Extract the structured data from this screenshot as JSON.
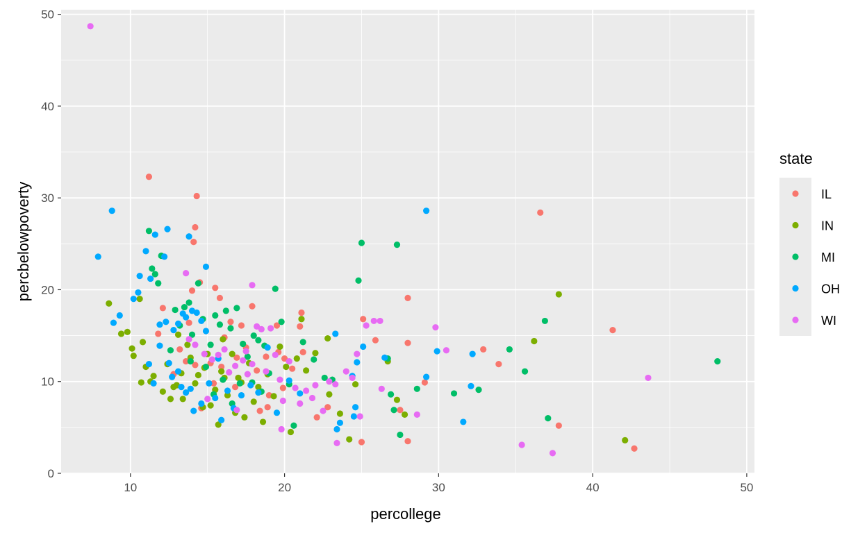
{
  "chart_data": {
    "type": "scatter",
    "title": "",
    "xlabel": "percollege",
    "ylabel": "percbelowpoverty",
    "xlim": [
      5.5,
      50.5
    ],
    "ylim": [
      0,
      50.5
    ],
    "x_ticks": [
      10,
      20,
      30,
      40,
      50
    ],
    "y_ticks": [
      0,
      10,
      20,
      30,
      40,
      50
    ],
    "x_tick_labels": [
      "10",
      "20",
      "30",
      "40",
      "50"
    ],
    "y_tick_labels": [
      "0",
      "10",
      "20",
      "30",
      "40",
      "50"
    ],
    "grid": true,
    "legend": {
      "title": "state",
      "placement": "right"
    },
    "series": [
      {
        "name": "IL",
        "color": "#F8766D",
        "points": [
          [
            11.2,
            32.3
          ],
          [
            14.3,
            30.2
          ],
          [
            14.2,
            26.8
          ],
          [
            14.1,
            25.2
          ],
          [
            14.5,
            20.8
          ],
          [
            15.5,
            20.2
          ],
          [
            15.8,
            19.1
          ],
          [
            14.0,
            19.9
          ],
          [
            12.1,
            18.0
          ],
          [
            17.9,
            18.2
          ],
          [
            21.1,
            17.5
          ],
          [
            19.5,
            16.1
          ],
          [
            21.0,
            16.0
          ],
          [
            25.1,
            16.8
          ],
          [
            25.9,
            14.5
          ],
          [
            28.0,
            14.2
          ],
          [
            28.0,
            19.1
          ],
          [
            36.6,
            28.4
          ],
          [
            41.3,
            15.6
          ],
          [
            32.9,
            13.5
          ],
          [
            33.9,
            11.9
          ],
          [
            29.1,
            9.9
          ],
          [
            27.5,
            6.9
          ],
          [
            28.0,
            3.5
          ],
          [
            25.0,
            3.4
          ],
          [
            37.8,
            5.2
          ],
          [
            42.7,
            2.7
          ],
          [
            11.8,
            15.2
          ],
          [
            13.2,
            13.5
          ],
          [
            13.6,
            12.2
          ],
          [
            14.2,
            11.8
          ],
          [
            15.2,
            12.0
          ],
          [
            15.9,
            11.6
          ],
          [
            16.5,
            16.5
          ],
          [
            16.9,
            12.6
          ],
          [
            17.0,
            10.4
          ],
          [
            17.5,
            13.7
          ],
          [
            18.2,
            11.2
          ],
          [
            18.8,
            12.7
          ],
          [
            19.0,
            8.5
          ],
          [
            19.6,
            13.2
          ],
          [
            20.0,
            12.5
          ],
          [
            20.5,
            11.4
          ],
          [
            21.2,
            13.2
          ],
          [
            22.1,
            6.1
          ],
          [
            22.8,
            7.2
          ],
          [
            14.6,
            7.1
          ],
          [
            15.4,
            9.8
          ],
          [
            16.1,
            14.8
          ],
          [
            16.8,
            9.4
          ],
          [
            18.4,
            6.8
          ],
          [
            19.9,
            9.3
          ],
          [
            13.8,
            16.4
          ],
          [
            17.2,
            16.1
          ],
          [
            12.8,
            10.8
          ],
          [
            18.9,
            7.2
          ]
        ]
      },
      {
        "name": "IN",
        "color": "#7CAE00",
        "points": [
          [
            8.6,
            18.5
          ],
          [
            10.6,
            19.0
          ],
          [
            9.4,
            15.2
          ],
          [
            9.8,
            15.4
          ],
          [
            10.1,
            13.6
          ],
          [
            10.2,
            12.8
          ],
          [
            10.8,
            14.3
          ],
          [
            10.7,
            9.9
          ],
          [
            11.0,
            11.6
          ],
          [
            11.3,
            10.0
          ],
          [
            11.5,
            10.6
          ],
          [
            12.1,
            8.9
          ],
          [
            12.4,
            11.9
          ],
          [
            12.6,
            8.1
          ],
          [
            12.8,
            9.4
          ],
          [
            13.0,
            9.6
          ],
          [
            13.3,
            10.9
          ],
          [
            13.4,
            8.1
          ],
          [
            13.7,
            14.0
          ],
          [
            13.9,
            12.6
          ],
          [
            14.2,
            9.8
          ],
          [
            14.4,
            10.7
          ],
          [
            14.7,
            7.2
          ],
          [
            15.0,
            13.0
          ],
          [
            15.2,
            7.4
          ],
          [
            15.5,
            9.1
          ],
          [
            15.7,
            5.3
          ],
          [
            15.9,
            11.1
          ],
          [
            16.1,
            10.4
          ],
          [
            16.3,
            8.5
          ],
          [
            16.6,
            13.0
          ],
          [
            16.8,
            6.6
          ],
          [
            17.0,
            10.4
          ],
          [
            17.2,
            9.9
          ],
          [
            17.4,
            6.1
          ],
          [
            17.7,
            12.0
          ],
          [
            18.0,
            7.8
          ],
          [
            18.3,
            9.4
          ],
          [
            18.6,
            5.6
          ],
          [
            18.9,
            10.8
          ],
          [
            19.3,
            8.4
          ],
          [
            19.7,
            13.8
          ],
          [
            20.1,
            11.6
          ],
          [
            20.4,
            4.5
          ],
          [
            20.8,
            12.5
          ],
          [
            21.1,
            16.8
          ],
          [
            21.4,
            11.2
          ],
          [
            22.0,
            13.1
          ],
          [
            22.8,
            14.7
          ],
          [
            22.9,
            8.6
          ],
          [
            23.6,
            6.5
          ],
          [
            24.2,
            3.7
          ],
          [
            24.6,
            9.7
          ],
          [
            26.7,
            12.2
          ],
          [
            27.3,
            8.0
          ],
          [
            27.8,
            6.4
          ],
          [
            36.2,
            14.4
          ],
          [
            37.8,
            19.5
          ],
          [
            42.1,
            3.6
          ],
          [
            14.8,
            11.5
          ],
          [
            16.0,
            14.6
          ],
          [
            13.1,
            15.1
          ]
        ]
      },
      {
        "name": "MI",
        "color": "#00BE67",
        "points": [
          [
            11.2,
            26.4
          ],
          [
            11.4,
            22.3
          ],
          [
            11.6,
            21.7
          ],
          [
            11.8,
            20.7
          ],
          [
            12.0,
            23.7
          ],
          [
            12.9,
            17.8
          ],
          [
            13.2,
            16.1
          ],
          [
            13.5,
            18.1
          ],
          [
            13.8,
            18.6
          ],
          [
            14.0,
            15.1
          ],
          [
            14.4,
            20.7
          ],
          [
            14.7,
            16.8
          ],
          [
            15.2,
            14.0
          ],
          [
            15.5,
            17.2
          ],
          [
            15.8,
            16.2
          ],
          [
            16.2,
            17.7
          ],
          [
            16.5,
            15.8
          ],
          [
            16.9,
            18.0
          ],
          [
            17.3,
            14.1
          ],
          [
            17.6,
            12.7
          ],
          [
            18.0,
            15.0
          ],
          [
            18.3,
            14.5
          ],
          [
            18.7,
            13.9
          ],
          [
            19.0,
            10.9
          ],
          [
            19.4,
            20.1
          ],
          [
            19.8,
            16.5
          ],
          [
            20.3,
            9.7
          ],
          [
            20.6,
            5.2
          ],
          [
            21.2,
            14.3
          ],
          [
            21.9,
            12.4
          ],
          [
            22.6,
            10.4
          ],
          [
            25.0,
            25.1
          ],
          [
            24.8,
            21.0
          ],
          [
            26.7,
            12.5
          ],
          [
            26.9,
            8.6
          ],
          [
            27.1,
            6.9
          ],
          [
            27.3,
            24.9
          ],
          [
            27.5,
            4.2
          ],
          [
            28.6,
            9.2
          ],
          [
            31.0,
            8.7
          ],
          [
            32.6,
            9.1
          ],
          [
            34.6,
            13.5
          ],
          [
            35.6,
            11.1
          ],
          [
            36.9,
            16.6
          ],
          [
            37.1,
            6.0
          ],
          [
            48.1,
            12.2
          ],
          [
            12.6,
            13.4
          ],
          [
            13.9,
            12.2
          ],
          [
            14.9,
            11.6
          ],
          [
            15.4,
            8.6
          ],
          [
            16.0,
            10.2
          ],
          [
            16.6,
            7.6
          ],
          [
            17.1,
            9.8
          ],
          [
            17.9,
            9.9
          ],
          [
            18.5,
            8.9
          ],
          [
            23.1,
            10.2
          ]
        ]
      },
      {
        "name": "OH",
        "color": "#00A9FF",
        "points": [
          [
            7.9,
            23.6
          ],
          [
            8.8,
            28.6
          ],
          [
            9.3,
            17.2
          ],
          [
            8.9,
            16.4
          ],
          [
            10.2,
            19.0
          ],
          [
            10.6,
            21.5
          ],
          [
            10.5,
            19.7
          ],
          [
            11.0,
            24.2
          ],
          [
            11.6,
            26.0
          ],
          [
            12.2,
            23.6
          ],
          [
            12.4,
            26.6
          ],
          [
            13.8,
            25.8
          ],
          [
            14.9,
            22.5
          ],
          [
            11.3,
            21.2
          ],
          [
            11.9,
            16.2
          ],
          [
            12.3,
            16.5
          ],
          [
            12.8,
            15.6
          ],
          [
            13.1,
            16.3
          ],
          [
            13.4,
            17.4
          ],
          [
            13.6,
            17.0
          ],
          [
            14.0,
            17.7
          ],
          [
            14.3,
            17.5
          ],
          [
            14.6,
            16.6
          ],
          [
            14.9,
            15.5
          ],
          [
            11.2,
            11.9
          ],
          [
            11.5,
            9.8
          ],
          [
            11.9,
            13.9
          ],
          [
            12.5,
            12.0
          ],
          [
            13.1,
            11.1
          ],
          [
            13.3,
            9.4
          ],
          [
            13.6,
            8.8
          ],
          [
            13.9,
            9.2
          ],
          [
            14.1,
            6.8
          ],
          [
            14.6,
            7.6
          ],
          [
            15.1,
            9.8
          ],
          [
            15.5,
            8.2
          ],
          [
            15.9,
            5.8
          ],
          [
            16.3,
            9.0
          ],
          [
            16.7,
            7.1
          ],
          [
            17.2,
            8.5
          ],
          [
            17.8,
            9.6
          ],
          [
            18.3,
            8.8
          ],
          [
            18.9,
            13.7
          ],
          [
            19.5,
            6.6
          ],
          [
            20.3,
            10.1
          ],
          [
            21.0,
            8.7
          ],
          [
            23.3,
            15.2
          ],
          [
            23.6,
            5.5
          ],
          [
            24.5,
            6.2
          ],
          [
            24.7,
            12.1
          ],
          [
            25.1,
            13.8
          ],
          [
            26.5,
            12.6
          ],
          [
            29.2,
            28.6
          ],
          [
            29.9,
            13.3
          ],
          [
            32.2,
            13.0
          ],
          [
            32.1,
            9.5
          ],
          [
            31.6,
            5.6
          ],
          [
            29.2,
            10.5
          ],
          [
            23.4,
            4.8
          ],
          [
            24.4,
            10.6
          ],
          [
            24.6,
            7.2
          ],
          [
            12.7,
            10.5
          ],
          [
            15.7,
            12.5
          ]
        ]
      },
      {
        "name": "WI",
        "color": "#E76BF3",
        "points": [
          [
            7.4,
            48.7
          ],
          [
            13.6,
            21.8
          ],
          [
            17.9,
            20.5
          ],
          [
            13.8,
            14.6
          ],
          [
            14.2,
            14.0
          ],
          [
            14.8,
            13.0
          ],
          [
            15.3,
            12.4
          ],
          [
            15.7,
            12.9
          ],
          [
            16.1,
            13.5
          ],
          [
            16.4,
            11.0
          ],
          [
            16.8,
            11.7
          ],
          [
            17.3,
            12.3
          ],
          [
            17.6,
            10.8
          ],
          [
            17.9,
            11.9
          ],
          [
            18.2,
            16.0
          ],
          [
            18.5,
            15.7
          ],
          [
            18.8,
            11.1
          ],
          [
            19.1,
            15.8
          ],
          [
            19.4,
            12.9
          ],
          [
            19.7,
            10.2
          ],
          [
            19.9,
            7.9
          ],
          [
            20.3,
            12.2
          ],
          [
            20.7,
            9.3
          ],
          [
            21.0,
            7.6
          ],
          [
            21.4,
            9.0
          ],
          [
            21.8,
            8.2
          ],
          [
            22.0,
            9.6
          ],
          [
            22.5,
            6.8
          ],
          [
            22.9,
            10.0
          ],
          [
            23.3,
            9.7
          ],
          [
            23.4,
            3.3
          ],
          [
            24.0,
            11.1
          ],
          [
            24.4,
            10.4
          ],
          [
            24.7,
            13.0
          ],
          [
            24.9,
            6.2
          ],
          [
            25.3,
            16.1
          ],
          [
            25.8,
            16.6
          ],
          [
            26.2,
            16.6
          ],
          [
            26.3,
            9.2
          ],
          [
            28.6,
            6.4
          ],
          [
            29.8,
            15.9
          ],
          [
            30.5,
            13.4
          ],
          [
            35.4,
            3.1
          ],
          [
            37.4,
            2.2
          ],
          [
            43.6,
            10.4
          ],
          [
            19.8,
            4.8
          ],
          [
            15.0,
            8.1
          ],
          [
            16.9,
            6.9
          ],
          [
            17.5,
            13.3
          ]
        ]
      }
    ]
  }
}
